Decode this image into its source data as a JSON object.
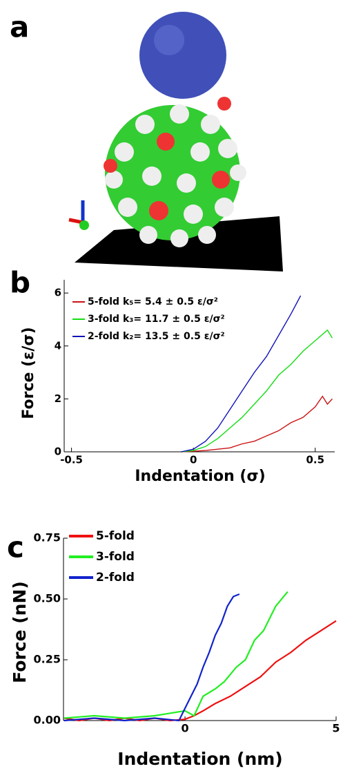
{
  "panel_labels": [
    "a",
    "b",
    "c"
  ],
  "chart_data": [
    {
      "type": "line",
      "xlabel": "Indentation (σ)",
      "ylabel": "Force (ε/σ)",
      "xlim": [
        -0.53,
        0.58
      ],
      "xticks": [
        -0.5,
        0,
        0.5
      ],
      "ylim": [
        0,
        6.5
      ],
      "yticks": [
        0,
        2,
        4,
        6
      ],
      "legend": "upper left",
      "series": [
        {
          "name": "5-fold k₅= 5.4 ± 0.5 ε/σ²",
          "color": "#cc1111",
          "x": [
            -0.05,
            0,
            0.05,
            0.1,
            0.15,
            0.2,
            0.25,
            0.3,
            0.35,
            0.4,
            0.45,
            0.5,
            0.53,
            0.55,
            0.57
          ],
          "values": [
            0,
            0.02,
            0.05,
            0.1,
            0.15,
            0.3,
            0.4,
            0.6,
            0.8,
            1.1,
            1.3,
            1.7,
            2.1,
            1.8,
            2.0
          ]
        },
        {
          "name": "3-fold k₃= 11.7 ± 0.5 ε/σ²",
          "color": "#11dd11",
          "x": [
            -0.05,
            0,
            0.05,
            0.1,
            0.15,
            0.2,
            0.25,
            0.3,
            0.35,
            0.4,
            0.45,
            0.5,
            0.55,
            0.57
          ],
          "values": [
            0,
            0.05,
            0.2,
            0.5,
            0.9,
            1.3,
            1.8,
            2.3,
            2.9,
            3.3,
            3.8,
            4.2,
            4.6,
            4.3
          ]
        },
        {
          "name": "2-fold k₂= 13.5 ± 0.5 ε/σ²",
          "color": "#1111bb",
          "x": [
            -0.05,
            0,
            0.05,
            0.1,
            0.15,
            0.2,
            0.25,
            0.3,
            0.35,
            0.4,
            0.44
          ],
          "values": [
            0,
            0.1,
            0.4,
            0.9,
            1.6,
            2.3,
            3.0,
            3.6,
            4.4,
            5.2,
            5.9
          ]
        }
      ]
    },
    {
      "type": "line",
      "xlabel": "Indentation (nm)",
      "ylabel": "Force (nN)",
      "xlim": [
        -4.02,
        5
      ],
      "xticks": [
        0,
        5
      ],
      "ylim": [
        0,
        0.75
      ],
      "yticks": [
        {
          "value": 0,
          "label": "0.00"
        },
        0.25,
        {
          "value": 0.5,
          "label": "0.50"
        },
        0.75
      ],
      "legend": "upper left",
      "series": [
        {
          "name": "5-fold",
          "color": "#ee1111",
          "x": [
            -4,
            -3.5,
            -3,
            -2.5,
            -2,
            -1.5,
            -1,
            -0.5,
            0,
            0.3,
            0.6,
            1,
            1.5,
            2,
            2.5,
            3,
            3.5,
            4,
            4.5,
            5
          ],
          "values": [
            0.01,
            0,
            0.01,
            0,
            0.01,
            0,
            0.01,
            0,
            0.005,
            0.02,
            0.04,
            0.07,
            0.1,
            0.14,
            0.18,
            0.24,
            0.28,
            0.33,
            0.37,
            0.41
          ]
        },
        {
          "name": "3-fold",
          "color": "#22ee22",
          "x": [
            -4,
            -3,
            -2,
            -1,
            -0.5,
            0,
            0.3,
            0.6,
            1,
            1.3,
            1.7,
            2,
            2.3,
            2.6,
            3,
            3.4
          ],
          "values": [
            0.01,
            0.02,
            0.01,
            0.02,
            0.03,
            0.04,
            0.02,
            0.1,
            0.13,
            0.16,
            0.22,
            0.25,
            0.33,
            0.37,
            0.47,
            0.53
          ]
        },
        {
          "name": "2-fold",
          "color": "#1122cc",
          "x": [
            -4,
            -3,
            -2,
            -1,
            -0.2,
            0,
            0.2,
            0.4,
            0.6,
            0.8,
            1,
            1.2,
            1.4,
            1.6,
            1.8
          ],
          "values": [
            0,
            0.01,
            0,
            0.01,
            0,
            0.05,
            0.1,
            0.15,
            0.22,
            0.28,
            0.35,
            0.4,
            0.47,
            0.51,
            0.52
          ]
        }
      ]
    }
  ]
}
